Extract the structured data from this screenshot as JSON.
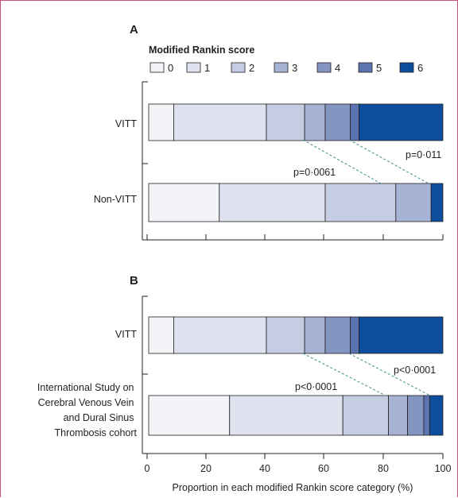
{
  "chart_data": [
    {
      "panel": "A",
      "type": "bar",
      "orientation": "horizontal",
      "stacked": true,
      "legend_title": "Modified Rankin score",
      "legend_labels": [
        "0",
        "1",
        "2",
        "3",
        "4",
        "5",
        "6"
      ],
      "categories": [
        "VITT",
        "Non-VITT"
      ],
      "series": [
        {
          "name": "0",
          "values": [
            8.5,
            24
          ]
        },
        {
          "name": "1",
          "values": [
            31.5,
            36
          ]
        },
        {
          "name": "2",
          "values": [
            13,
            24
          ]
        },
        {
          "name": "3",
          "values": [
            7,
            12
          ]
        },
        {
          "name": "4",
          "values": [
            8.5,
            0
          ]
        },
        {
          "name": "5",
          "values": [
            3,
            0
          ]
        },
        {
          "name": "6",
          "values": [
            28.5,
            4
          ]
        }
      ],
      "p_values": [
        "p=0·011",
        "p=0·0061"
      ],
      "xlim": [
        0,
        100
      ]
    },
    {
      "panel": "B",
      "type": "bar",
      "orientation": "horizontal",
      "stacked": true,
      "categories": [
        "VITT",
        "International Study on Cerebral Venous Vein and Dural Sinus Thrombosis cohort"
      ],
      "categories_lines": [
        "International Study on",
        "Cerebral Venous Vein",
        "and Dural Sinus",
        "Thrombosis cohort"
      ],
      "series": [
        {
          "name": "0",
          "values": [
            8.5,
            27.5
          ]
        },
        {
          "name": "1",
          "values": [
            31.5,
            38.5
          ]
        },
        {
          "name": "2",
          "values": [
            13,
            15.5
          ]
        },
        {
          "name": "3",
          "values": [
            7,
            6.5
          ]
        },
        {
          "name": "4",
          "values": [
            8.5,
            5.5
          ]
        },
        {
          "name": "5",
          "values": [
            3,
            2
          ]
        },
        {
          "name": "6",
          "values": [
            28.5,
            4.5
          ]
        }
      ],
      "p_values": [
        "p<0·0001",
        "p<0·0001"
      ],
      "xlabel": "Proportion in each modified Rankin score category (%)",
      "xticks": [
        "0",
        "20",
        "40",
        "60",
        "80",
        "100"
      ],
      "xlim": [
        0,
        100
      ]
    }
  ],
  "colors": {
    "score_fills": [
      "#f3f4f8",
      "#dde2ee",
      "#c5cde3",
      "#a6b3d4",
      "#8595c2",
      "#5b74b0",
      "#0d4f9e"
    ],
    "dash_line": "#3d8b8b",
    "frame": "#c8527a"
  }
}
